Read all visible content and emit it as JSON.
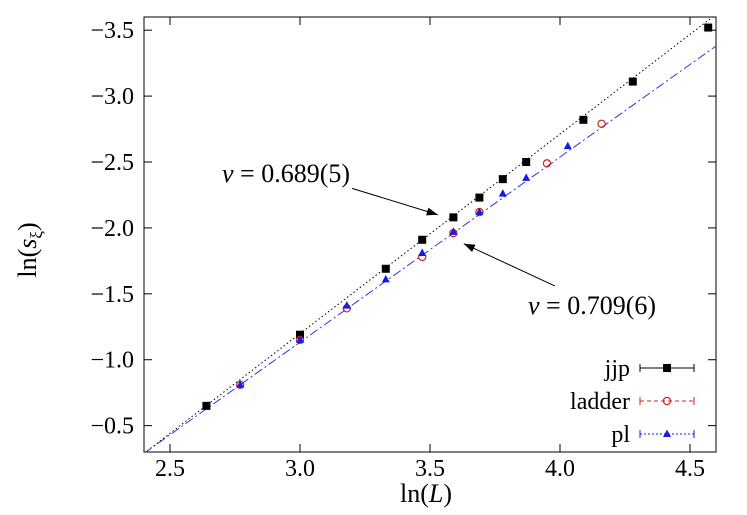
{
  "chart_data": {
    "type": "scatter",
    "xlabel_prefix": "ln(",
    "xlabel_var": "L",
    "xlabel_suffix": ")",
    "ylabel_prefix": "ln(",
    "ylabel_var": "s",
    "ylabel_sub": "ξ",
    "ylabel_suffix": ")",
    "xlim": [
      2.4,
      4.6
    ],
    "ylim": [
      -0.3,
      -3.6
    ],
    "y_inverted": true,
    "xticks": [
      2.5,
      3.0,
      3.5,
      4.0,
      4.5
    ],
    "xtick_labels": [
      "2.5",
      "3.0",
      "3.5",
      "4.0",
      "4.5"
    ],
    "yticks": [
      -0.5,
      -1.0,
      -1.5,
      -2.0,
      -2.5,
      -3.0,
      -3.5
    ],
    "ytick_labels": [
      "−0.5",
      "−1.0",
      "−1.5",
      "−2.0",
      "−2.5",
      "−3.0",
      "−3.5"
    ],
    "grid": false,
    "legend_position": "bottom-right",
    "series": [
      {
        "name": "jjp",
        "marker": "square",
        "color": "#000000",
        "x": [
          2.64,
          3.0,
          3.33,
          3.47,
          3.59,
          3.69,
          3.78,
          3.87,
          4.09,
          4.28,
          4.57
        ],
        "y": [
          -0.65,
          -1.19,
          -1.69,
          -1.91,
          -2.08,
          -2.23,
          -2.37,
          -2.5,
          -2.82,
          -3.11,
          -3.52
        ]
      },
      {
        "name": "ladder",
        "marker": "open-circle",
        "color": "#cc2222",
        "x": [
          2.77,
          3.0,
          3.18,
          3.47,
          3.59,
          3.69,
          3.95,
          4.16
        ],
        "y": [
          -0.81,
          -1.15,
          -1.39,
          -1.78,
          -1.96,
          -2.12,
          -2.49,
          -2.79
        ]
      },
      {
        "name": "pl",
        "marker": "triangle",
        "color": "#1a1ae6",
        "x": [
          2.77,
          3.0,
          3.18,
          3.33,
          3.47,
          3.59,
          3.69,
          3.78,
          3.87,
          4.03
        ],
        "y": [
          -0.81,
          -1.15,
          -1.41,
          -1.61,
          -1.81,
          -1.97,
          -2.12,
          -2.26,
          -2.38,
          -2.62
        ]
      }
    ],
    "fit_lines": [
      {
        "series": "jjp",
        "style": "dotted",
        "color": "#000000",
        "x": [
          2.4,
          4.6
        ],
        "y": [
          -0.29,
          -3.62
        ]
      },
      {
        "series": "pl",
        "style": "dashdot",
        "color": "#3333dd",
        "x": [
          2.4,
          4.6
        ],
        "y": [
          -0.29,
          -3.38
        ]
      }
    ],
    "annotations": [
      {
        "nu": "ν",
        "eq": " = ",
        "value": "0.689(5)",
        "arrow_from": [
          3.2,
          -2.3
        ],
        "arrow_to": [
          3.53,
          -2.1
        ]
      },
      {
        "nu": "ν",
        "eq": " = ",
        "value": "0.709(6)",
        "arrow_from": [
          3.98,
          -1.56
        ],
        "arrow_to": [
          3.63,
          -1.88
        ]
      }
    ]
  }
}
